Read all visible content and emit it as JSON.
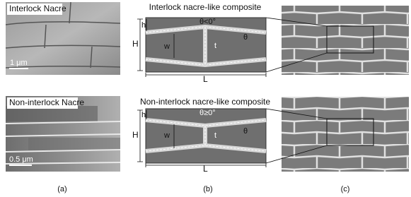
{
  "panel_a": {
    "caption": "(a)",
    "images": [
      {
        "label": "Interlock Nacre",
        "scale_bar": "1 μm"
      },
      {
        "label": "Non-interlock Nacre",
        "scale_bar": "0.5 μm"
      }
    ]
  },
  "panel_b": {
    "caption": "(b)",
    "diagrams": [
      {
        "title": "Interlock nacre-like composite",
        "angle": "θ<0°",
        "h": "h",
        "H": "H",
        "w": "w",
        "t": "t",
        "theta": "θ",
        "L": "L"
      },
      {
        "title": "Non-interlock nacre-like composite",
        "angle": "θ≥0°",
        "h": "h",
        "H": "H",
        "w": "w",
        "t": "t",
        "theta": "θ",
        "L": "L"
      }
    ]
  },
  "panel_c": {
    "caption": "(c)"
  }
}
